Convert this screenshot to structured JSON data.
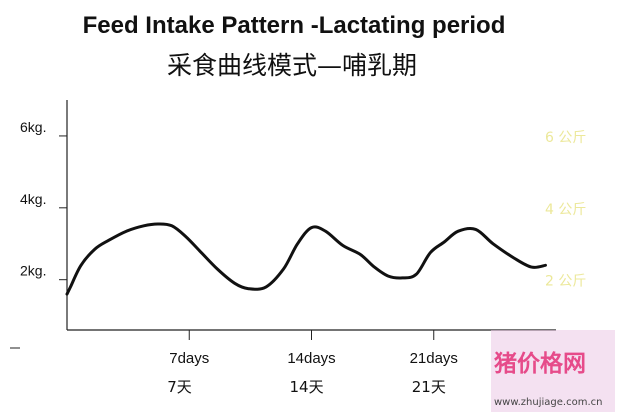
{
  "chart_data": {
    "type": "line",
    "title": "Feed Intake Pattern -Lactating period",
    "subtitle": "采食曲线模式—哺乳期",
    "y_ticks": [
      {
        "value": 2,
        "label": "2kg.",
        "label_cn": "2 公斤"
      },
      {
        "value": 4,
        "label": "4kg.",
        "label_cn": "4 公斤"
      },
      {
        "value": 6,
        "label": "6kg.",
        "label_cn": "6 公斤"
      }
    ],
    "x_ticks": [
      {
        "value": 7,
        "label": "7days",
        "label_cn": "7天"
      },
      {
        "value": 14,
        "label": "14days",
        "label_cn": "14天"
      },
      {
        "value": 21,
        "label": "21days",
        "label_cn": "21天"
      }
    ],
    "xlim": [
      0,
      28
    ],
    "ylim": [
      0.6,
      7.0
    ],
    "grid": false,
    "x": [
      0,
      0.2,
      0.8,
      1.6,
      2.4,
      3.4,
      4.4,
      5.2,
      6.0,
      6.8,
      7.6,
      8.6,
      9.6,
      10.4,
      11.4,
      12.4,
      13.2,
      14.0,
      14.8,
      15.8,
      16.8,
      17.6,
      18.4,
      19.2,
      20.0,
      20.8,
      21.6,
      22.4,
      23.4,
      24.4,
      25.6,
      26.6,
      27.4
    ],
    "series": [
      {
        "values": [
          1.6,
          1.8,
          2.4,
          2.85,
          3.1,
          3.35,
          3.5,
          3.55,
          3.5,
          3.2,
          2.8,
          2.3,
          1.9,
          1.75,
          1.8,
          2.3,
          3.0,
          3.45,
          3.35,
          2.95,
          2.7,
          2.35,
          2.1,
          2.05,
          2.15,
          2.75,
          3.05,
          3.35,
          3.4,
          3.0,
          2.6,
          2.35,
          2.4
        ]
      }
    ]
  },
  "watermark": {
    "text": "猪价格网",
    "url": "www.zhujiage.com.cn",
    "colors": {
      "text": "#e64b8a",
      "box": "#f0c8e6"
    }
  }
}
